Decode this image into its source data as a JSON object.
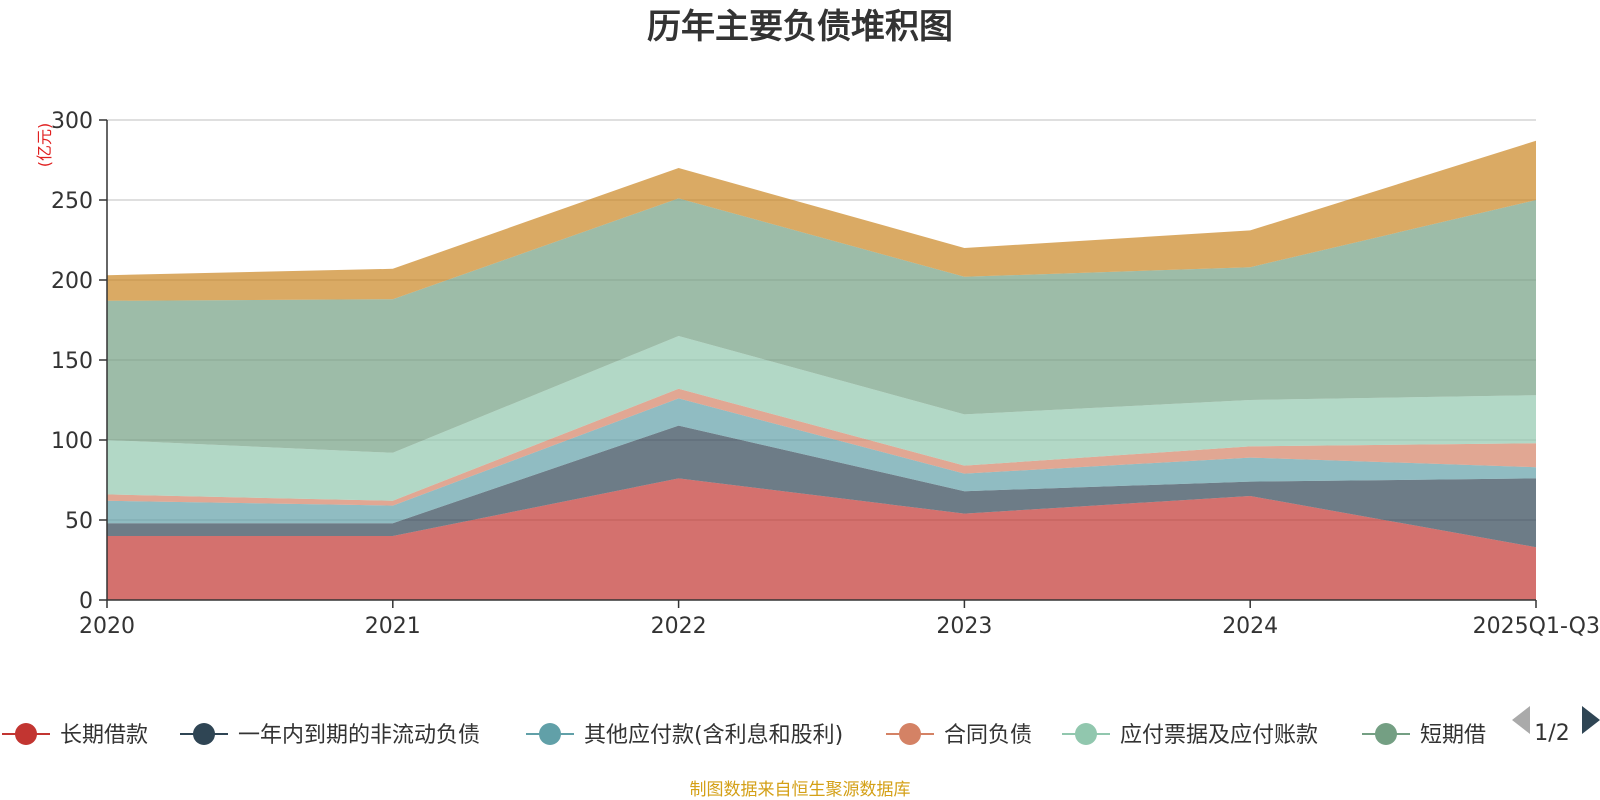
{
  "chart_data": {
    "type": "area",
    "stacked": true,
    "title": "历年主要负债堆积图",
    "ylabel": "(亿元)",
    "ylim": [
      0,
      300
    ],
    "yticks": [
      0,
      50,
      100,
      150,
      200,
      250,
      300
    ],
    "categories": [
      "2020",
      "2021",
      "2022",
      "2023",
      "2024",
      "2025Q1-Q3"
    ],
    "series": [
      {
        "name": "长期借款",
        "color": "#c23531",
        "values": [
          40,
          40,
          76,
          54,
          65,
          33
        ]
      },
      {
        "name": "一年内到期的非流动负债",
        "color": "#2f4554",
        "values": [
          8,
          8,
          33,
          14,
          9,
          43
        ]
      },
      {
        "name": "其他应付款(含利息和股利)",
        "color": "#61a0a8",
        "values": [
          14,
          11,
          17,
          11,
          15,
          7
        ]
      },
      {
        "name": "合同负债",
        "color": "#d48265",
        "values": [
          4,
          3,
          6,
          5,
          7,
          15
        ]
      },
      {
        "name": "应付票据及应付账款",
        "color": "#91c7ae",
        "values": [
          34,
          30,
          33,
          32,
          29,
          30
        ]
      },
      {
        "name": "短期借款",
        "color": "#749f83",
        "values": [
          87,
          96,
          86,
          86,
          83,
          122
        ]
      },
      {
        "name": "",
        "color": "#ca8622",
        "values": [
          16,
          19,
          19,
          18,
          23,
          37
        ]
      }
    ]
  },
  "legend": {
    "visible_items": [
      "长期借款",
      "一年内到期的非流动负债",
      "其他应付款(含利息和股利)",
      "合同负债",
      "应付票据及应付账款",
      "短期借"
    ],
    "page_label": "1/2"
  },
  "footer": {
    "source": "制图数据来自恒生聚源数据库"
  },
  "colors": {
    "grid": "#cccccc",
    "axis": "#333333",
    "pager_active": "#2f4554",
    "pager_inactive": "#aaaaaa"
  }
}
